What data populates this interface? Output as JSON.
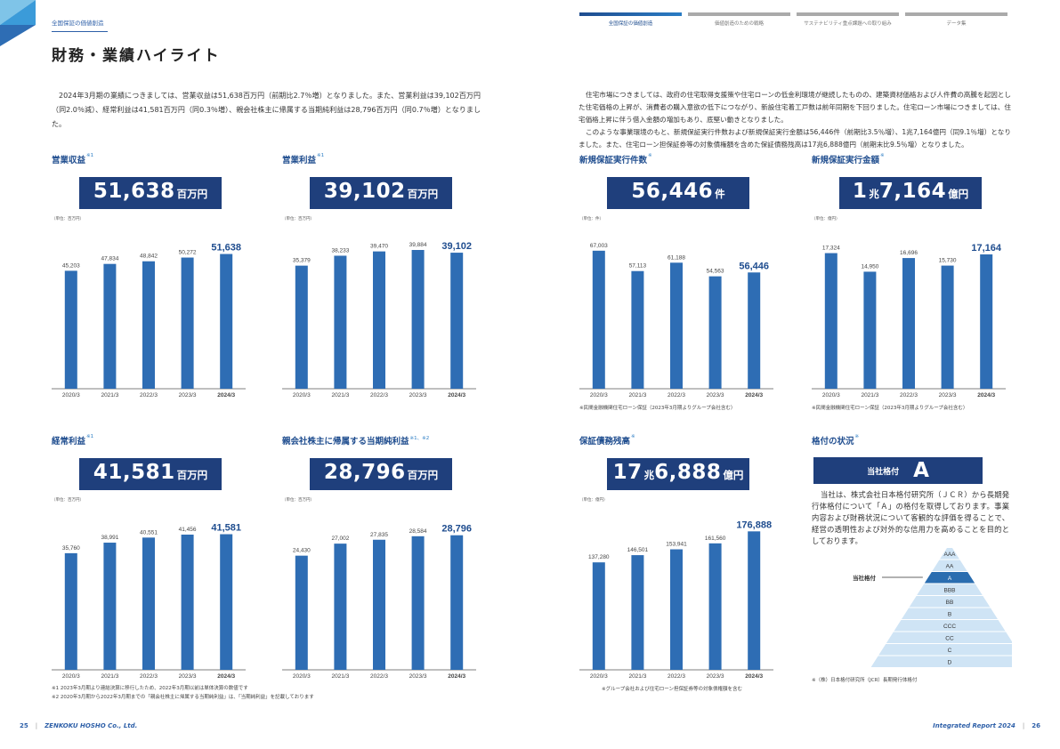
{
  "header": {
    "section_label": "全国保証の価値創造",
    "page_title": "財務・業績ハイライト"
  },
  "nav": [
    {
      "label": "全国保証の価値創造",
      "active": true
    },
    {
      "label": "価値創造のための戦略",
      "active": false
    },
    {
      "label": "サステナビリティ重点課題への取り組み",
      "active": false
    },
    {
      "label": "データ集",
      "active": false
    }
  ],
  "intro_left": "2024年3月期の業績につきましては、営業収益は51,638百万円（前期比2.7％増）となりました。また、営業利益は39,102百万円（同2.0％減）、経常利益は41,581百万円（同0.3％増）、親会社株主に帰属する当期純利益は28,796百万円（同0.7％増）となりました。",
  "intro_right_1": "住宅市場につきましては、政府の住宅取得支援策や住宅ローンの低金利環境が継続したものの、建築資材価格および人件費の高騰を起因とした住宅価格の上昇が、消費者の購入意欲の低下につながり、新設住宅着工戸数は前年同期を下回りました。住宅ローン市場につきましては、住宅価格上昇に伴う借入金額の増加もあり、底堅い動きとなりました。",
  "intro_right_2": "このような事業環境のもと、新規保証実行件数および新規保証実行金額は56,446件（前期比3.5％増）、1兆7,164億円（同9.1％増）となりました。また、住宅ローン担保証券等の対象債権額を含めた保証債務残高は17兆6,888億円（前期末比9.5％増）となりました。",
  "charts": [
    {
      "title": "営業収益",
      "sup": "※1",
      "value": "51,638",
      "unit": "百万円",
      "unit_label": "（単位：百万円）",
      "note": "",
      "chart_data": {
        "type": "bar",
        "categories": [
          "2020/3",
          "2021/3",
          "2022/3",
          "2023/3",
          "2024/3"
        ],
        "values": [
          45203,
          47834,
          48842,
          50272,
          51638
        ],
        "labels": [
          "45,203",
          "47,834",
          "48,842",
          "50,272",
          "51,638"
        ],
        "ylim": [
          0,
          60000
        ]
      }
    },
    {
      "title": "営業利益",
      "sup": "※1",
      "value": "39,102",
      "unit": "百万円",
      "unit_label": "（単位：百万円）",
      "note": "",
      "chart_data": {
        "type": "bar",
        "categories": [
          "2020/3",
          "2021/3",
          "2022/3",
          "2023/3",
          "2024/3"
        ],
        "values": [
          35379,
          38233,
          39470,
          39884,
          39102
        ],
        "labels": [
          "35,379",
          "38,233",
          "39,470",
          "39,884",
          "39,102"
        ],
        "ylim": [
          0,
          45000
        ]
      }
    },
    {
      "title": "新規保証実行件数",
      "sup": "※",
      "value": "56,446",
      "unit": "件",
      "unit_label": "（単位：件）",
      "note": "※民間金融機関住宅ローン保証（2023年3月期よりグループ会社含む）",
      "chart_data": {
        "type": "bar",
        "categories": [
          "2020/3",
          "2021/3",
          "2022/3",
          "2023/3",
          "2024/3"
        ],
        "values": [
          67003,
          57113,
          61188,
          54563,
          56446
        ],
        "labels": [
          "67,003",
          "57,113",
          "61,188",
          "54,563",
          "56,446"
        ],
        "ylim": [
          0,
          76000
        ]
      }
    },
    {
      "title": "新規保証実行金額",
      "sup": "※",
      "value_parts": [
        "1",
        "兆",
        "7,164",
        "億円"
      ],
      "unit_label": "（単位：億円）",
      "note": "※民間金融機関住宅ローン保証（2023年3月期よりグループ会社含む）",
      "chart_data": {
        "type": "bar",
        "categories": [
          "2020/3",
          "2021/3",
          "2022/3",
          "2023/3",
          "2024/3"
        ],
        "values": [
          17324,
          14950,
          16696,
          15730,
          17164
        ],
        "labels": [
          "17,324",
          "14,950",
          "16,696",
          "15,730",
          "17,164"
        ],
        "ylim": [
          0,
          20000
        ]
      }
    },
    {
      "title": "経常利益",
      "sup": "※1",
      "value": "41,581",
      "unit": "百万円",
      "unit_label": "（単位：百万円）",
      "note": "",
      "chart_data": {
        "type": "bar",
        "categories": [
          "2020/3",
          "2021/3",
          "2022/3",
          "2023/3",
          "2024/3"
        ],
        "values": [
          35760,
          38991,
          40551,
          41456,
          41581
        ],
        "labels": [
          "35,760",
          "38,991",
          "40,551",
          "41,456",
          "41,581"
        ],
        "ylim": [
          0,
          48000
        ]
      }
    },
    {
      "title": "親会社株主に帰属する当期純利益",
      "sup": "※1、※2",
      "value": "28,796",
      "unit": "百万円",
      "unit_label": "（単位：百万円）",
      "note": "",
      "chart_data": {
        "type": "bar",
        "categories": [
          "2020/3",
          "2021/3",
          "2022/3",
          "2023/3",
          "2024/3"
        ],
        "values": [
          24430,
          27002,
          27835,
          28584,
          28796
        ],
        "labels": [
          "24,430",
          "27,002",
          "27,835",
          "28,584",
          "28,796"
        ],
        "ylim": [
          0,
          33500
        ]
      }
    },
    {
      "title": "保証債務残高",
      "sup": "※",
      "value_parts": [
        "17",
        "兆",
        "6,888",
        "億円"
      ],
      "unit_label": "（単位：億円）",
      "note": "※グループ会社および住宅ローン担保証券等の対象債権額を含む",
      "chart_data": {
        "type": "bar",
        "categories": [
          "2020/3",
          "2021/3",
          "2022/3",
          "2023/3",
          "2024/3"
        ],
        "values": [
          137280,
          146501,
          153941,
          161560,
          176888
        ],
        "labels": [
          "137,280",
          "146,501",
          "153,941",
          "161,560",
          "176,888"
        ],
        "ylim": [
          0,
          200000
        ]
      }
    }
  ],
  "rating": {
    "title": "格付の状況",
    "sup": "※",
    "box_label": "当社格付",
    "box_value": "A",
    "text": "当社は、株式会社日本格付研究所（ＪＣＲ）から長期発行体格付について「Ａ」の格付を取得しております。事業内容および財務状況について客観的な評価を得ることで、経営の透明性および対外的な信用力を高めることを目的としております。",
    "pointer_label": "当社格付",
    "levels": [
      "AAA",
      "AA",
      "A",
      "BBB",
      "BB",
      "B",
      "CCC",
      "CC",
      "C",
      "D"
    ],
    "highlight": "A",
    "note": "※（株）日本格付研究所（JCR）長期発行体格付"
  },
  "footnotes": [
    "※1 2023年3月期より連結決算に移行したため、2022年3月期以前は単体決算の数値です",
    "※2 2020年3月期から2022年3月期までの「親会社株主に帰属する当期純利益」は、「当期純利益」を記載しております"
  ],
  "footer": {
    "left_page": "25",
    "company": "ZENKOKU HOSHO Co., Ltd.",
    "report": "Integrated Report 2024",
    "right_page": "26"
  },
  "colors": {
    "bar": "#2e6db4",
    "box": "#1f3f7c",
    "accent": "#1f4d8f",
    "pyramid": "#cfe4f5",
    "pyramid_highlight": "#2a6db0"
  }
}
